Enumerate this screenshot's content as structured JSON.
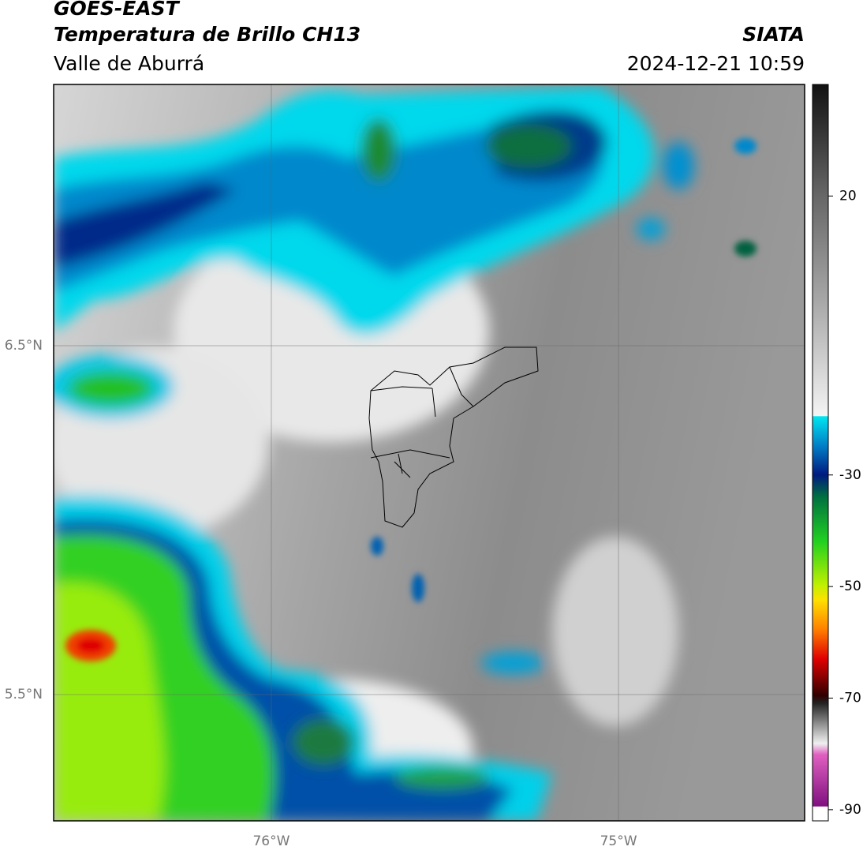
{
  "header": {
    "title": "GOES-EAST",
    "subtitle": "Temperatura de Brillo CH13",
    "region": "Valle de Aburrá",
    "source": "SIATA",
    "datetime": "2024-12-21 10:59"
  },
  "map": {
    "latlim": [
      5.138,
      7.249
    ],
    "lonlim": [
      -76.627,
      -74.464
    ],
    "lat_ticks": [
      {
        "value": 6.5,
        "label": "6.5°N"
      },
      {
        "value": 5.5,
        "label": "5.5°N"
      }
    ],
    "lon_ticks": [
      {
        "value": -76,
        "label": "76°W"
      },
      {
        "value": -75,
        "label": "75°W"
      }
    ]
  },
  "colorbar": {
    "range": [
      -92,
      40
    ],
    "ticks": [
      20,
      -30,
      -50,
      -70,
      -90
    ]
  }
}
